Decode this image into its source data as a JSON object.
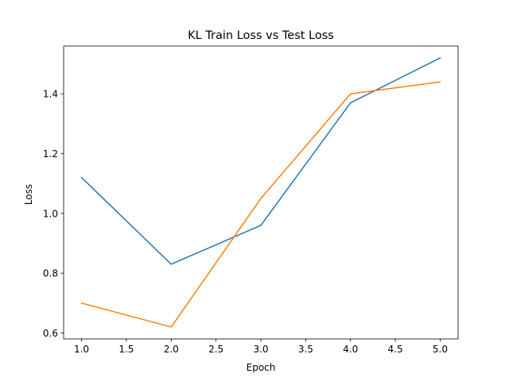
{
  "chart_data": {
    "type": "line",
    "title": "KL Train Loss vs Test Loss",
    "xlabel": "Epoch",
    "ylabel": "Loss",
    "x": [
      1.0,
      2.0,
      3.0,
      4.0,
      5.0
    ],
    "xlim": [
      0.8,
      5.2
    ],
    "ylim": [
      0.58,
      1.56
    ],
    "xticks": [
      1.0,
      1.5,
      2.0,
      2.5,
      3.0,
      3.5,
      4.0,
      4.5,
      5.0
    ],
    "xtick_labels": [
      "1.0",
      "1.5",
      "2.0",
      "2.5",
      "3.0",
      "3.5",
      "4.0",
      "4.5",
      "5.0"
    ],
    "yticks": [
      0.6,
      0.8,
      1.0,
      1.2,
      1.4
    ],
    "ytick_labels": [
      "0.6",
      "0.8",
      "1.0",
      "1.2",
      "1.4"
    ],
    "grid": false,
    "legend": false,
    "series": [
      {
        "color": "#1f77b4",
        "values": [
          1.12,
          0.83,
          0.96,
          1.37,
          1.52
        ]
      },
      {
        "color": "#ff7f0e",
        "values": [
          0.7,
          0.62,
          1.05,
          1.4,
          1.44
        ]
      }
    ]
  }
}
